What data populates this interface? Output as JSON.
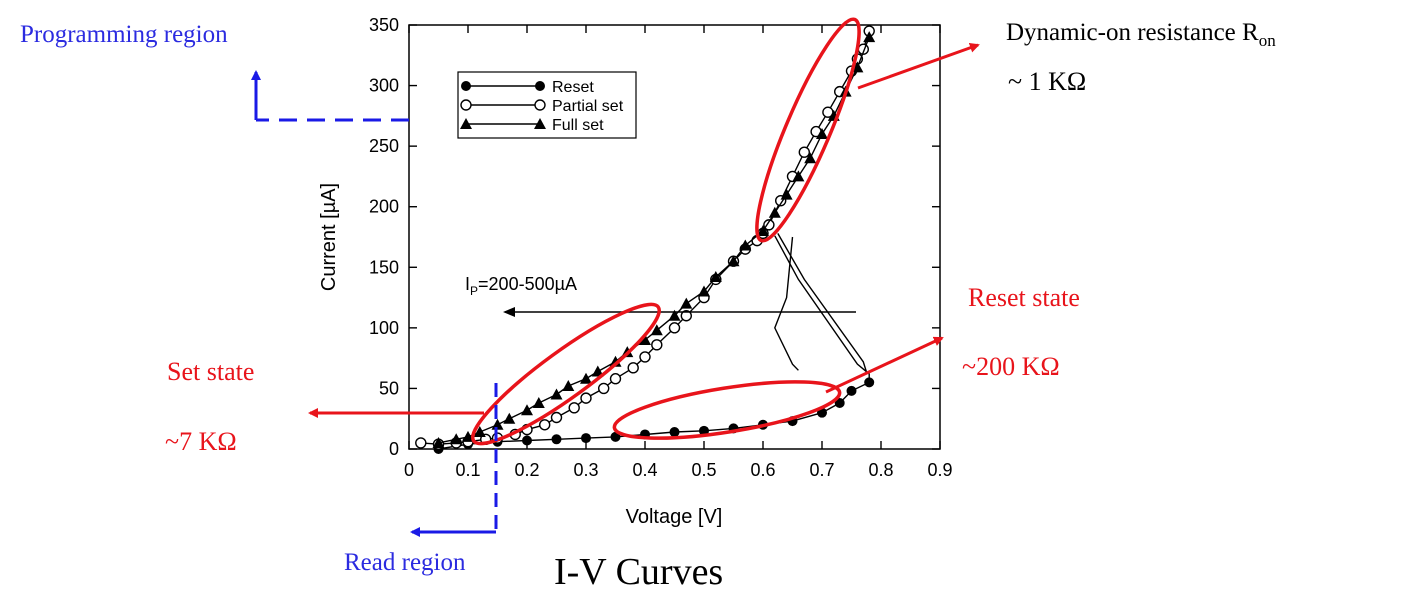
{
  "chart_data": {
    "type": "line",
    "title": "I-V Curves",
    "xlabel": "Voltage [V]",
    "ylabel": "Current [µA]",
    "xlim": [
      0,
      0.9
    ],
    "ylim": [
      0,
      350
    ],
    "xticks": [
      "0",
      "0.1",
      "0.2",
      "0.3",
      "0.4",
      "0.5",
      "0.6",
      "0.7",
      "0.8",
      "0.9"
    ],
    "yticks": [
      "0",
      "50",
      "100",
      "150",
      "200",
      "250",
      "300",
      "350"
    ],
    "grid": false,
    "legend_position": "top-left",
    "series": [
      {
        "name": "Reset",
        "marker": "filled-circle",
        "x": [
          0.05,
          0.1,
          0.15,
          0.2,
          0.25,
          0.3,
          0.35,
          0.4,
          0.45,
          0.5,
          0.55,
          0.6,
          0.65,
          0.7,
          0.73,
          0.75,
          0.78
        ],
        "y": [
          0,
          4,
          6,
          7,
          8,
          9,
          10,
          12,
          14,
          15,
          17,
          20,
          23,
          30,
          38,
          48,
          55
        ]
      },
      {
        "name": "Partial set",
        "marker": "open-circle",
        "x": [
          0.02,
          0.05,
          0.08,
          0.1,
          0.13,
          0.15,
          0.18,
          0.2,
          0.23,
          0.25,
          0.28,
          0.3,
          0.33,
          0.35,
          0.38,
          0.4,
          0.42,
          0.45,
          0.47,
          0.5,
          0.52,
          0.55,
          0.57,
          0.59,
          0.6,
          0.61,
          0.63,
          0.65,
          0.67,
          0.69,
          0.71,
          0.73,
          0.75,
          0.76,
          0.77,
          0.78
        ],
        "y": [
          5,
          4,
          5,
          6,
          8,
          9,
          12,
          16,
          20,
          26,
          34,
          42,
          50,
          58,
          67,
          76,
          86,
          100,
          110,
          125,
          140,
          155,
          165,
          172,
          178,
          185,
          205,
          225,
          245,
          262,
          278,
          295,
          312,
          322,
          330,
          345
        ]
      },
      {
        "name": "Full set",
        "marker": "filled-triangle",
        "x": [
          0.05,
          0.08,
          0.1,
          0.12,
          0.15,
          0.17,
          0.2,
          0.22,
          0.25,
          0.27,
          0.3,
          0.32,
          0.35,
          0.37,
          0.4,
          0.42,
          0.45,
          0.47,
          0.5,
          0.52,
          0.55,
          0.57,
          0.6,
          0.62,
          0.64,
          0.66,
          0.68,
          0.7,
          0.72,
          0.74,
          0.76,
          0.78
        ],
        "y": [
          5,
          8,
          10,
          14,
          20,
          25,
          32,
          38,
          45,
          52,
          58,
          64,
          72,
          80,
          90,
          98,
          110,
          120,
          130,
          142,
          155,
          168,
          180,
          195,
          210,
          225,
          240,
          260,
          275,
          295,
          315,
          340
        ]
      }
    ],
    "annotations": {
      "ip_label": "I_P=200-500µA",
      "programming_region": "Programming region",
      "read_region": "Read region",
      "set_state": "Set state",
      "set_value": "~7 KΩ",
      "reset_state": "Reset state",
      "reset_value": "~200 KΩ",
      "dynamic_on": "Dynamic-on resistance R",
      "dynamic_on_sub": "on",
      "dynamic_value": "~ 1 KΩ"
    }
  },
  "colors": {
    "ink": "#000000",
    "red": "#e8141b",
    "blue": "#1a1ae6",
    "text_blue": "#2b2be0",
    "text_red": "#e8141b"
  }
}
